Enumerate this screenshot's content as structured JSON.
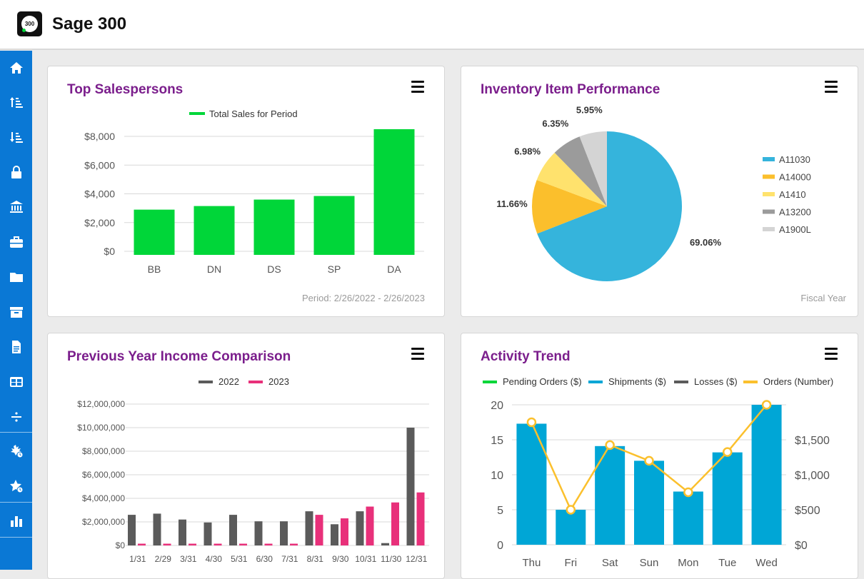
{
  "app": {
    "title": "Sage 300",
    "logo_text": "300"
  },
  "sidebar": {
    "items": [
      {
        "icon": "home-icon"
      },
      {
        "icon": "sort-ascending-icon"
      },
      {
        "icon": "sort-descending-icon"
      },
      {
        "icon": "lock-icon"
      },
      {
        "icon": "bank-icon"
      },
      {
        "icon": "briefcase-icon"
      },
      {
        "icon": "folder-icon"
      },
      {
        "icon": "archive-icon"
      },
      {
        "icon": "document-icon"
      },
      {
        "icon": "table-icon"
      },
      {
        "icon": "divide-icon"
      },
      {
        "icon": "maple-leaf-clock-icon"
      },
      {
        "icon": "star-clock-icon"
      },
      {
        "icon": "bar-chart-icon"
      }
    ]
  },
  "cards": {
    "top_salespersons": {
      "title": "Top Salespersons",
      "footer": "Period: 2/26/2022 - 2/26/2023"
    },
    "inventory": {
      "title": "Inventory Item Performance",
      "footer": "Fiscal Year"
    },
    "income": {
      "title": "Previous Year Income Comparison"
    },
    "activity": {
      "title": "Activity Trend"
    }
  },
  "colors": {
    "accent": "#7b1e8c",
    "sidebar": "#0a78d5",
    "green": "#00d639",
    "blue": "#00a6d6",
    "gray": "#5b5b5b",
    "pink": "#e8307a",
    "gold": "#fbc02d"
  },
  "chart_data": [
    {
      "id": "sales",
      "type": "bar",
      "categories": [
        "BB",
        "DN",
        "DS",
        "SP",
        "DA"
      ],
      "series": [
        {
          "name": "Total Sales for Period",
          "color": "#00d639",
          "values": [
            2900,
            3150,
            3600,
            3850,
            8500
          ]
        }
      ],
      "ylim": [
        0,
        8000
      ],
      "yticks": [
        "$0",
        "$2,000",
        "$4,000",
        "$6,000",
        "$8,000"
      ]
    },
    {
      "id": "inventory",
      "type": "pie",
      "labels": [
        "A11030",
        "A14000",
        "A1410",
        "A13200",
        "A1900L"
      ],
      "values": [
        69.06,
        11.66,
        6.98,
        6.35,
        5.95
      ],
      "value_labels": [
        "69.06%",
        "11.66%",
        "6.98%",
        "6.35%",
        "5.95%"
      ],
      "colors": [
        "#35b4dc",
        "#fbbf2c",
        "#ffe26d",
        "#9b9b9b",
        "#d4d4d4"
      ],
      "legend": "right"
    },
    {
      "id": "income",
      "type": "bar",
      "categories": [
        "1/31",
        "2/29",
        "3/31",
        "4/30",
        "5/31",
        "6/30",
        "7/31",
        "8/31",
        "9/30",
        "10/31",
        "11/30",
        "12/31"
      ],
      "series": [
        {
          "name": "2022",
          "color": "#5b5b5b",
          "values": [
            2600000,
            2700000,
            2200000,
            1950000,
            2600000,
            2050000,
            2050000,
            2900000,
            1800000,
            2900000,
            200000,
            10000000
          ]
        },
        {
          "name": "2023",
          "color": "#e8307a",
          "values": [
            150000,
            150000,
            150000,
            150000,
            150000,
            150000,
            150000,
            2600000,
            2300000,
            3300000,
            3650000,
            4500000
          ]
        }
      ],
      "ylim": [
        0,
        12000000
      ],
      "yticks": [
        "$0",
        "$2,000,000",
        "$4,000,000",
        "$6,000,000",
        "$8,000,000",
        "$10,000,000",
        "$12,000,000"
      ]
    },
    {
      "id": "activity",
      "type": "bar+line",
      "categories": [
        "Thu",
        "Fri",
        "Sat",
        "Sun",
        "Mon",
        "Tue",
        "Wed"
      ],
      "legend": [
        {
          "name": "Pending Orders ($)",
          "color": "#00d639"
        },
        {
          "name": "Shipments ($)",
          "color": "#00a6d6"
        },
        {
          "name": "Losses ($)",
          "color": "#5b5b5b"
        },
        {
          "name": "Orders (Number)",
          "color": "#fbc02d"
        }
      ],
      "bars": {
        "name": "Shipments ($)",
        "values": [
          17.3,
          5,
          14.1,
          12,
          7.6,
          13.2,
          20
        ]
      },
      "line": {
        "name": "Orders (Number)",
        "values": [
          1750,
          500,
          1425,
          1200,
          750,
          1325,
          2000
        ]
      },
      "y_left_lim": [
        0,
        20
      ],
      "y_left_ticks": [
        "0",
        "5",
        "10",
        "15",
        "20"
      ],
      "y_right_lim": [
        0,
        2000
      ],
      "y_right_ticks": [
        "$0",
        "$500",
        "$1,000",
        "$1,500"
      ]
    }
  ]
}
